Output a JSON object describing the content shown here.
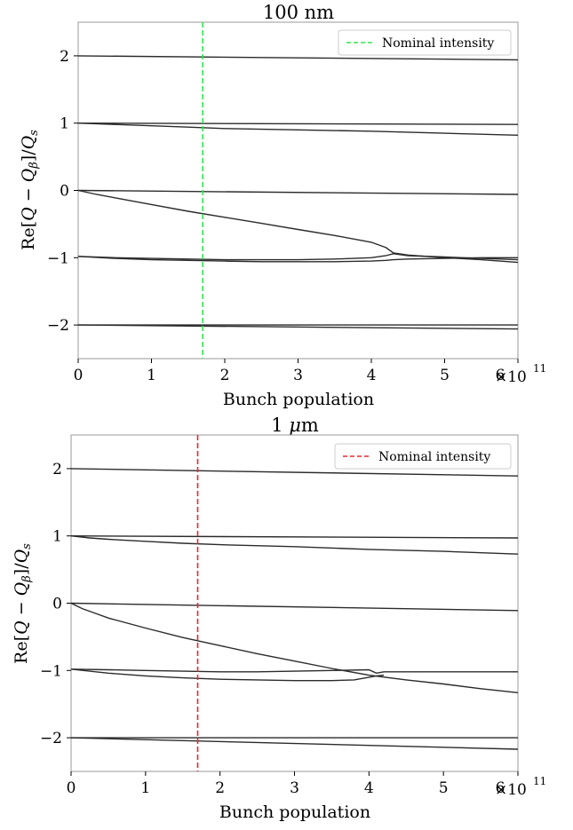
{
  "chart_data": [
    {
      "type": "line",
      "title": "100 nm",
      "xlabel": "Bunch population",
      "ylabel": "Re[Q − Qβ]/Qs",
      "xlim": [
        0,
        6
      ],
      "ylim": [
        -2.5,
        2.5
      ],
      "x_ticks": [
        "0",
        "1",
        "2",
        "3",
        "4",
        "5",
        "6"
      ],
      "x_multiplier": "×10",
      "x_multiplier_exp": "11",
      "y_ticks": [
        "−2",
        "−1",
        "0",
        "1",
        "2"
      ],
      "grid": false,
      "legend": {
        "position": "top-right",
        "entries": [
          "Nominal intensity"
        ]
      },
      "vline": {
        "x": 1.7,
        "label": "Nominal intensity",
        "color": "#2ee84a",
        "style": "dashed"
      },
      "series": [
        {
          "x": [
            0,
            6
          ],
          "y": [
            2.0,
            1.94
          ]
        },
        {
          "x": [
            0,
            6
          ],
          "y": [
            1.0,
            0.98
          ]
        },
        {
          "x": [
            0,
            0.5,
            1,
            1.5,
            2,
            3,
            4,
            5,
            6
          ],
          "y": [
            1.0,
            0.98,
            0.96,
            0.94,
            0.92,
            0.9,
            0.88,
            0.85,
            0.82
          ]
        },
        {
          "x": [
            0,
            6
          ],
          "y": [
            0.0,
            -0.06
          ]
        },
        {
          "x": [
            0,
            0.25,
            0.5,
            1,
            1.5,
            2,
            2.5,
            3,
            3.5,
            4,
            4.2,
            4.3,
            4.5,
            5,
            5.5,
            6
          ],
          "y": [
            0.0,
            -0.06,
            -0.11,
            -0.21,
            -0.31,
            -0.4,
            -0.49,
            -0.58,
            -0.67,
            -0.77,
            -0.85,
            -0.93,
            -0.96,
            -1.0,
            -1.03,
            -1.07
          ]
        },
        {
          "x": [
            0,
            0.5,
            1,
            1.5,
            2,
            2.5,
            3,
            3.5,
            4,
            4.2,
            4.3,
            4.5,
            5,
            5.5,
            6
          ],
          "y": [
            -0.98,
            -1.0,
            -1.01,
            -1.02,
            -1.03,
            -1.03,
            -1.03,
            -1.02,
            -1.0,
            -0.97,
            -0.94,
            -0.97,
            -0.99,
            -1.01,
            -1.03
          ]
        },
        {
          "x": [
            0,
            0.5,
            1,
            1.5,
            2,
            2.5,
            3,
            3.5,
            4,
            4.2,
            4.3,
            4.5,
            5,
            5.5,
            6
          ],
          "y": [
            -0.98,
            -1.01,
            -1.03,
            -1.04,
            -1.05,
            -1.06,
            -1.06,
            -1.06,
            -1.05,
            -1.04,
            -1.03,
            -1.02,
            -1.01,
            -1.0,
            -1.0
          ]
        },
        {
          "x": [
            0,
            6
          ],
          "y": [
            -2.0,
            -2.0
          ]
        },
        {
          "x": [
            0,
            6
          ],
          "y": [
            -2.0,
            -2.06
          ]
        }
      ]
    },
    {
      "type": "line",
      "title": "1 μm",
      "xlabel": "Bunch population",
      "ylabel": "Re[Q − Qβ]/Qs",
      "xlim": [
        0,
        6
      ],
      "ylim": [
        -2.5,
        2.5
      ],
      "x_ticks": [
        "0",
        "1",
        "2",
        "3",
        "4",
        "5",
        "6"
      ],
      "x_multiplier": "×10",
      "x_multiplier_exp": "11",
      "y_ticks": [
        "−2",
        "−1",
        "0",
        "1",
        "2"
      ],
      "grid": false,
      "legend": {
        "position": "top-right",
        "entries": [
          "Nominal intensity"
        ]
      },
      "vline": {
        "x": 1.7,
        "label": "Nominal intensity",
        "color": "#e8282b",
        "style": "dashed"
      },
      "series": [
        {
          "x": [
            0,
            6
          ],
          "y": [
            2.0,
            1.89
          ]
        },
        {
          "x": [
            0,
            6
          ],
          "y": [
            1.0,
            0.97
          ]
        },
        {
          "x": [
            0,
            0.25,
            0.5,
            1,
            1.5,
            2,
            3,
            4,
            5,
            6
          ],
          "y": [
            1.0,
            0.97,
            0.95,
            0.92,
            0.89,
            0.87,
            0.84,
            0.8,
            0.77,
            0.73
          ]
        },
        {
          "x": [
            0,
            6
          ],
          "y": [
            0.0,
            -0.11
          ]
        },
        {
          "x": [
            0,
            0.15,
            0.3,
            0.5,
            1,
            1.5,
            2,
            2.5,
            3,
            3.5,
            4,
            4.5,
            5,
            5.5,
            6
          ],
          "y": [
            0.0,
            -0.08,
            -0.14,
            -0.22,
            -0.37,
            -0.51,
            -0.63,
            -0.75,
            -0.86,
            -0.97,
            -1.07,
            -1.14,
            -1.2,
            -1.27,
            -1.33
          ]
        },
        {
          "x": [
            0,
            0.5,
            1,
            1.5,
            2,
            2.5,
            3,
            3.5,
            4,
            4.1,
            4.2,
            4.5,
            5,
            5.5,
            6
          ],
          "y": [
            -0.98,
            -0.99,
            -1.0,
            -1.01,
            -1.02,
            -1.02,
            -1.01,
            -1.0,
            -0.99,
            -1.04,
            -1.02,
            -1.02,
            -1.02,
            -1.02,
            -1.02
          ]
        },
        {
          "x": [
            0,
            0.5,
            1,
            1.5,
            2,
            2.5,
            3,
            3.5,
            3.8,
            4.0,
            4.1,
            4.2
          ],
          "y": [
            -0.98,
            -1.04,
            -1.08,
            -1.11,
            -1.13,
            -1.14,
            -1.15,
            -1.15,
            -1.14,
            -1.1,
            -1.08,
            -1.07
          ]
        },
        {
          "x": [
            0,
            6
          ],
          "y": [
            -2.0,
            -2.0
          ]
        },
        {
          "x": [
            0,
            6
          ],
          "y": [
            -2.0,
            -2.17
          ]
        }
      ]
    }
  ]
}
